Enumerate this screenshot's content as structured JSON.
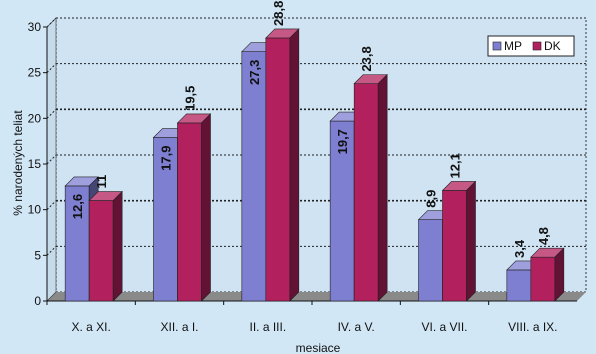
{
  "chart_data": {
    "type": "bar",
    "xlabel": "mesiace",
    "ylabel": "% narodených teliat",
    "ylim": [
      0,
      30
    ],
    "yticks": [
      0,
      5,
      10,
      15,
      20,
      25,
      30
    ],
    "categories": [
      "X. a XI.",
      "XII. a I.",
      "II. a III.",
      "IV. a V.",
      "VI. a VII.",
      "VIII. a IX."
    ],
    "series": [
      {
        "name": "MP",
        "values": [
          12.6,
          17.9,
          27.3,
          19.7,
          8.9,
          3.4
        ],
        "labels": [
          "12,6",
          "17,9",
          "27,3",
          "19,7",
          "8,9",
          "3,4"
        ],
        "color": "#7f7fd2"
      },
      {
        "name": "DK",
        "values": [
          11,
          19.5,
          28.8,
          23.8,
          12.1,
          4.8
        ],
        "labels": [
          "11",
          "19,5",
          "28,8",
          "23,8",
          "12,1",
          "4,8"
        ],
        "color": "#b3205e"
      }
    ],
    "legend": "top-right",
    "grid": true
  }
}
